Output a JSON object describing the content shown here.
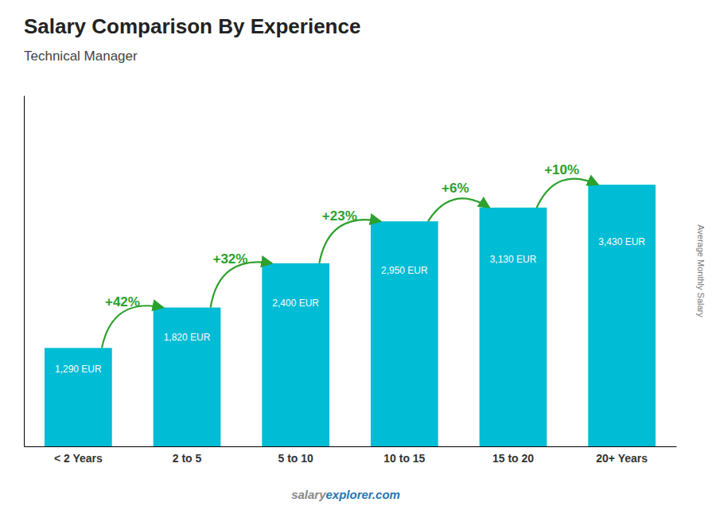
{
  "chart_data": {
    "type": "bar",
    "title": "Salary Comparison By Experience",
    "subtitle": "Technical Manager",
    "y_label": "Average Monthly Salary",
    "watermark": [
      "salary",
      "explorer.com"
    ],
    "categories": [
      "< 2 Years",
      "2 to 5",
      "5 to 10",
      "10 to 15",
      "15 to 20",
      "20+ Years"
    ],
    "values": [
      1290,
      1820,
      2400,
      2950,
      3130,
      3430
    ],
    "value_labels": [
      "1,290 EUR",
      "1,820 EUR",
      "2,400 EUR",
      "2,950 EUR",
      "3,130 EUR",
      "3,430 EUR"
    ],
    "data_labels": true,
    "annotations": [
      "+42%",
      "+32%",
      "+23%",
      "+6%",
      "+10%"
    ],
    "color": "#00bcd4",
    "ylim": [
      0,
      4600
    ],
    "grid": false,
    "tick_labels": "x"
  }
}
